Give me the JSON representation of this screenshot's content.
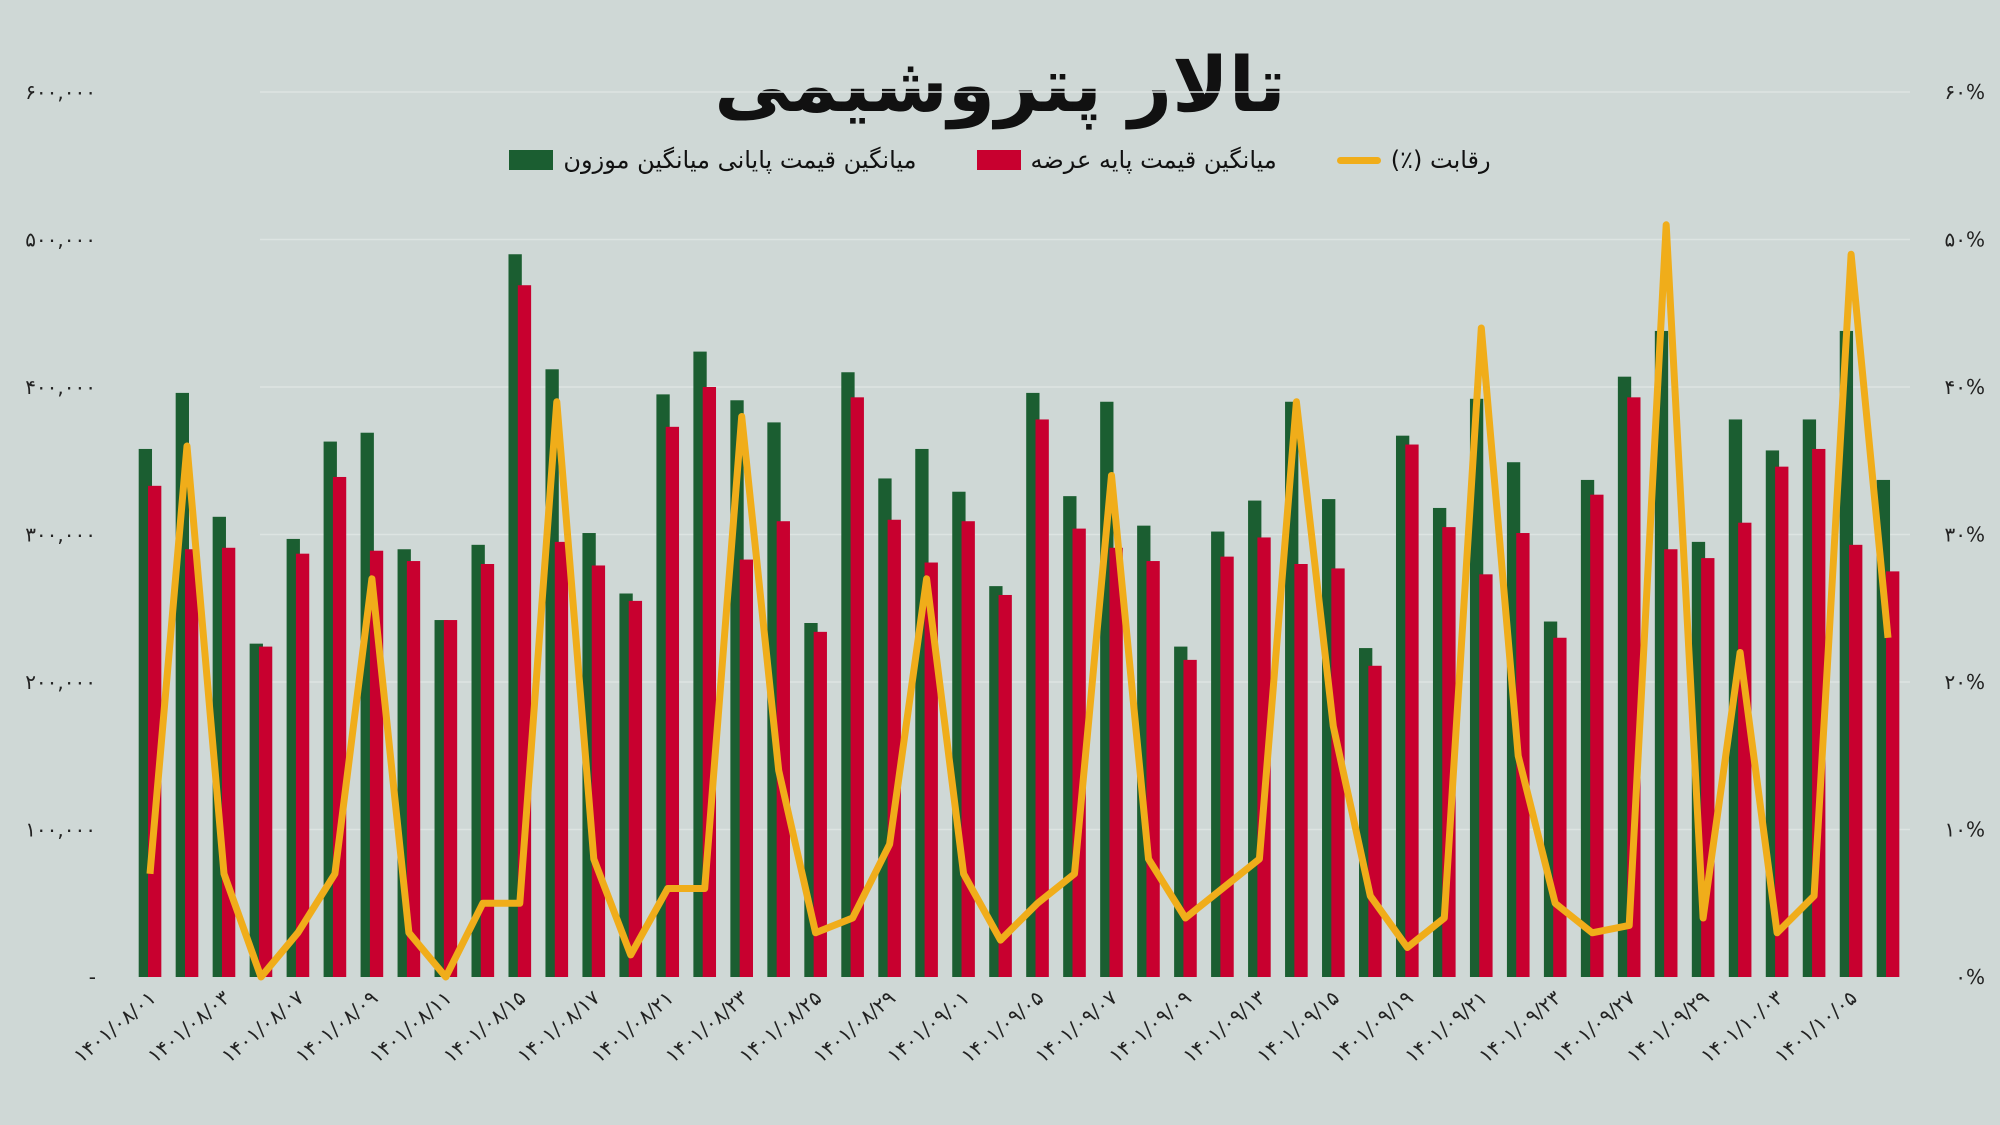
{
  "title": "تالار پتروشیمی",
  "legend": {
    "items": [
      {
        "label": "رقابت (٪)",
        "type": "line",
        "color": "#f0ad1a"
      },
      {
        "label": "میانگین قیمت پایه عرضه",
        "type": "bar",
        "color": "#c8002f"
      },
      {
        "label": "میانگین قیمت پایانی میانگین موزون",
        "type": "bar",
        "color": "#1b5e31"
      }
    ]
  },
  "axes": {
    "left_ticks": [
      "-",
      "۱۰۰,۰۰۰",
      "۲۰۰,۰۰۰",
      "۳۰۰,۰۰۰",
      "۴۰۰,۰۰۰",
      "۵۰۰,۰۰۰",
      "۶۰۰,۰۰۰"
    ],
    "right_ticks": [
      "۰%",
      "۱۰%",
      "۲۰%",
      "۳۰%",
      "۴۰%",
      "۵۰%",
      "۶۰%"
    ]
  },
  "chart_data": {
    "type": "bar",
    "title": "تالار پتروشیمی",
    "xlabel": "",
    "ylabel": "",
    "ylim": [
      0,
      600000
    ],
    "y2lim": [
      0,
      60
    ],
    "grid": true,
    "legend_position": "top",
    "x_tick_labels": [
      "۱۴۰۱/۰۸/۰۱",
      "۱۴۰۱/۰۸/۰۳",
      "۱۴۰۱/۰۸/۰۷",
      "۱۴۰۱/۰۸/۰۹",
      "۱۴۰۱/۰۸/۱۱",
      "۱۴۰۱/۰۸/۱۵",
      "۱۴۰۱/۰۸/۱۷",
      "۱۴۰۱/۰۸/۲۱",
      "۱۴۰۱/۰۸/۲۳",
      "۱۴۰۱/۰۸/۲۵",
      "۱۴۰۱/۰۸/۲۹",
      "۱۴۰۱/۰۹/۰۱",
      "۱۴۰۱/۰۹/۰۵",
      "۱۴۰۱/۰۹/۰۷",
      "۱۴۰۱/۰۹/۰۹",
      "۱۴۰۱/۰۹/۱۳",
      "۱۴۰۱/۰۹/۱۵",
      "۱۴۰۱/۰۹/۱۹",
      "۱۴۰۱/۰۹/۲۱",
      "۱۴۰۱/۰۹/۲۳",
      "۱۴۰۱/۰۹/۲۷",
      "۱۴۰۱/۰۹/۲۹",
      "۱۴۰۱/۱۰/۰۳",
      "۱۴۰۱/۱۰/۰۵"
    ],
    "series": [
      {
        "name": "میانگین قیمت پایانی میانگین موزون",
        "type": "bar",
        "color": "#1b5e31",
        "values": [
          358000,
          396000,
          312000,
          226000,
          297000,
          363000,
          369000,
          290000,
          242000,
          293000,
          490000,
          412000,
          301000,
          260000,
          395000,
          424000,
          391000,
          376000,
          240000,
          410000,
          338000,
          358000,
          329000,
          265000,
          396000,
          326000,
          390000,
          306000,
          224000,
          302000,
          323000,
          390000,
          324000,
          223000,
          367000,
          318000,
          392000,
          349000,
          241000,
          337000,
          407000,
          438000,
          295000,
          378000,
          357000,
          378000,
          438000,
          337000
        ]
      },
      {
        "name": "میانگین قیمت پایه عرضه",
        "type": "bar",
        "color": "#c8002f",
        "values": [
          333000,
          290000,
          291000,
          224000,
          287000,
          339000,
          289000,
          282000,
          242000,
          280000,
          469000,
          295000,
          279000,
          255000,
          373000,
          400000,
          283000,
          309000,
          234000,
          393000,
          310000,
          281000,
          309000,
          259000,
          378000,
          304000,
          291000,
          282000,
          215000,
          285000,
          298000,
          280000,
          277000,
          211000,
          361000,
          305000,
          273000,
          301000,
          230000,
          327000,
          393000,
          290000,
          284000,
          308000,
          346000,
          358000,
          293000,
          275000
        ]
      },
      {
        "name": "رقابت (٪)",
        "type": "line",
        "axis": "right",
        "color": "#f0ad1a",
        "values": [
          7,
          36,
          7,
          0,
          3,
          7,
          27,
          3,
          0,
          5,
          5,
          39,
          8,
          1.5,
          6,
          6,
          38,
          14,
          3,
          4,
          9,
          27,
          7,
          2.5,
          5,
          7,
          34,
          8,
          4,
          6,
          8,
          39,
          17,
          5.5,
          2,
          4,
          44,
          15,
          5,
          3,
          3.5,
          51,
          4,
          22,
          3,
          5.5,
          49,
          23
        ]
      }
    ]
  }
}
